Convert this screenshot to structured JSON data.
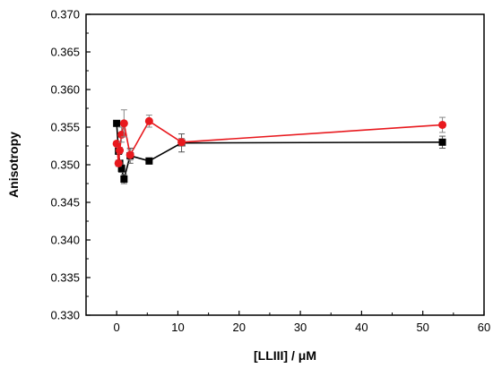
{
  "chart_data": {
    "type": "scatter",
    "xlabel": "[LLIII] / μM",
    "ylabel": "Anisotropy",
    "xlim": [
      -5,
      60
    ],
    "ylim": [
      0.33,
      0.37
    ],
    "xticks": [
      0,
      10,
      20,
      30,
      40,
      50,
      60
    ],
    "xtick_labels": [
      "0",
      "10",
      "20",
      "30",
      "40",
      "50",
      "60"
    ],
    "yticks": [
      0.33,
      0.335,
      0.34,
      0.345,
      0.35,
      0.355,
      0.36,
      0.365,
      0.37
    ],
    "ytick_labels": [
      "0.330",
      "0.335",
      "0.340",
      "0.345",
      "0.350",
      "0.355",
      "0.360",
      "0.365",
      "0.370"
    ],
    "grid": false,
    "series": [
      {
        "color": "#000000",
        "marker": "square",
        "x": [
          0,
          0.3,
          0.5,
          0.8,
          1.2,
          2.2,
          5.3,
          10.6,
          53.2
        ],
        "y": [
          0.3555,
          0.3518,
          0.3502,
          0.3495,
          0.3481,
          0.3512,
          0.3505,
          0.3529,
          0.353
        ],
        "err": [
          0.0003,
          0.0004,
          0.0004,
          0.0005,
          0.0006,
          0.001,
          0.0004,
          0.0012,
          0.0008
        ]
      },
      {
        "color": "#e8191e",
        "marker": "circle",
        "x": [
          0,
          0.3,
          0.5,
          0.8,
          1.2,
          2.2,
          5.3,
          10.6,
          53.2
        ],
        "y": [
          0.3528,
          0.3502,
          0.3519,
          0.354,
          0.3555,
          0.3513,
          0.3558,
          0.353,
          0.3553
        ],
        "err": [
          0.0003,
          0.0004,
          0.0004,
          0.001,
          0.0018,
          0.0007,
          0.0008,
          0.0005,
          0.001
        ]
      }
    ]
  }
}
